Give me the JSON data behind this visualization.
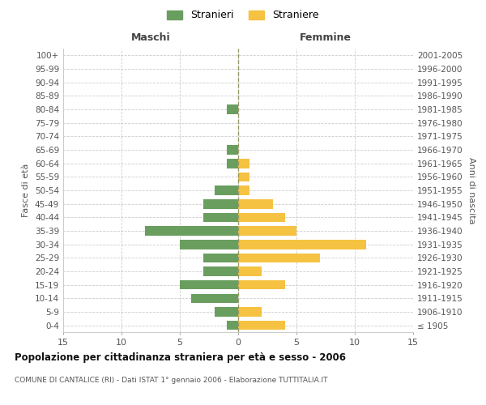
{
  "age_groups": [
    "100+",
    "95-99",
    "90-94",
    "85-89",
    "80-84",
    "75-79",
    "70-74",
    "65-69",
    "60-64",
    "55-59",
    "50-54",
    "45-49",
    "40-44",
    "35-39",
    "30-34",
    "25-29",
    "20-24",
    "15-19",
    "10-14",
    "5-9",
    "0-4"
  ],
  "birth_years": [
    "≤ 1905",
    "1906-1910",
    "1911-1915",
    "1916-1920",
    "1921-1925",
    "1926-1930",
    "1931-1935",
    "1936-1940",
    "1941-1945",
    "1946-1950",
    "1951-1955",
    "1956-1960",
    "1961-1965",
    "1966-1970",
    "1971-1975",
    "1976-1980",
    "1981-1985",
    "1986-1990",
    "1991-1995",
    "1996-2000",
    "2001-2005"
  ],
  "males": [
    0,
    0,
    0,
    0,
    1,
    0,
    0,
    1,
    1,
    0,
    2,
    3,
    3,
    8,
    5,
    3,
    3,
    5,
    4,
    2,
    1
  ],
  "females": [
    0,
    0,
    0,
    0,
    0,
    0,
    0,
    0,
    1,
    1,
    1,
    3,
    4,
    5,
    11,
    7,
    2,
    4,
    0,
    2,
    4
  ],
  "male_color": "#6a9e5f",
  "female_color": "#f5c242",
  "grid_color": "#cccccc",
  "background_color": "#ffffff",
  "title": "Popolazione per cittadinanza straniera per età e sesso - 2006",
  "subtitle": "COMUNE DI CANTALICE (RI) - Dati ISTAT 1° gennaio 2006 - Elaborazione TUTTITALIA.IT",
  "xlabel_left": "Maschi",
  "xlabel_right": "Femmine",
  "ylabel_left": "Fasce di età",
  "ylabel_right": "Anni di nascita",
  "legend_male": "Stranieri",
  "legend_female": "Straniere",
  "xlim": 15,
  "bar_height": 0.7
}
